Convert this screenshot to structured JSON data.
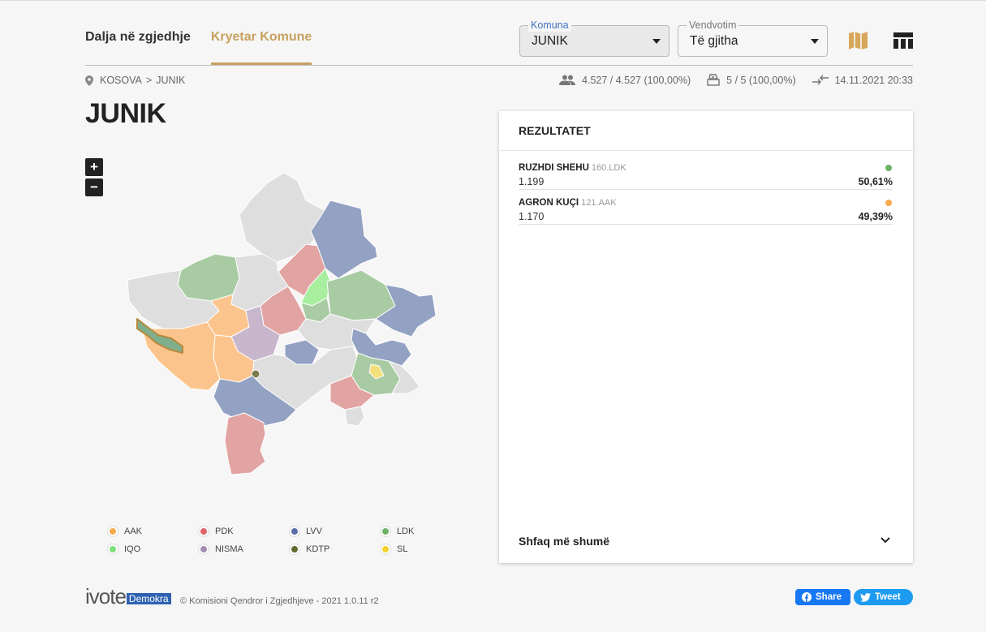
{
  "header": {
    "tabs": [
      {
        "label": "Dalja në zgjedhje",
        "active": false
      },
      {
        "label": "Kryetar Komune",
        "active": true
      }
    ],
    "komuna": {
      "label": "Komuna",
      "value": "JUNIK"
    },
    "vendvotim": {
      "label": "Vendvotim",
      "value": "Të gjitha"
    },
    "icons": [
      "map-icon",
      "table-icon"
    ]
  },
  "breadcrumb": {
    "root": "KOSOVA",
    "separator": ">",
    "current": "JUNIK"
  },
  "stats": {
    "voters": "4.527 / 4.527 (100,00%)",
    "stations": "5 / 5 (100,00%)",
    "updated": "14.11.2021 20:33"
  },
  "page_title": "JUNIK",
  "zoom": {
    "in": "+",
    "out": "−"
  },
  "legend": [
    {
      "label": "AAK",
      "color": "#f7a94e"
    },
    {
      "label": "PDK",
      "color": "#e0636a"
    },
    {
      "label": "LVV",
      "color": "#5b6fa6"
    },
    {
      "label": "LDK",
      "color": "#6eb168"
    },
    {
      "label": "IQO",
      "color": "#7ee07b"
    },
    {
      "label": "NISMA",
      "color": "#a58db3"
    },
    {
      "label": "KDTP",
      "color": "#606b30"
    },
    {
      "label": "SL",
      "color": "#f4d02a"
    }
  ],
  "results": {
    "title": "REZULTATET",
    "candidates": [
      {
        "name": "RUZHDI SHEHU",
        "party": "160.LDK",
        "votes": "1.199",
        "percent": "50,61%",
        "color": "#6eb168"
      },
      {
        "name": "AGRON KUÇI",
        "party": "121.AAK",
        "votes": "1.170",
        "percent": "49,39%",
        "color": "#f7a94e"
      }
    ],
    "more": "Shfaq më shumë"
  },
  "footer": {
    "logo_text": "ivote",
    "logo_badge": "Demokra",
    "copyright": "© Komisioni Qendror i Zgjedhjeve - 2021 1.0.11 r2",
    "share": "Share",
    "tweet": "Tweet"
  }
}
